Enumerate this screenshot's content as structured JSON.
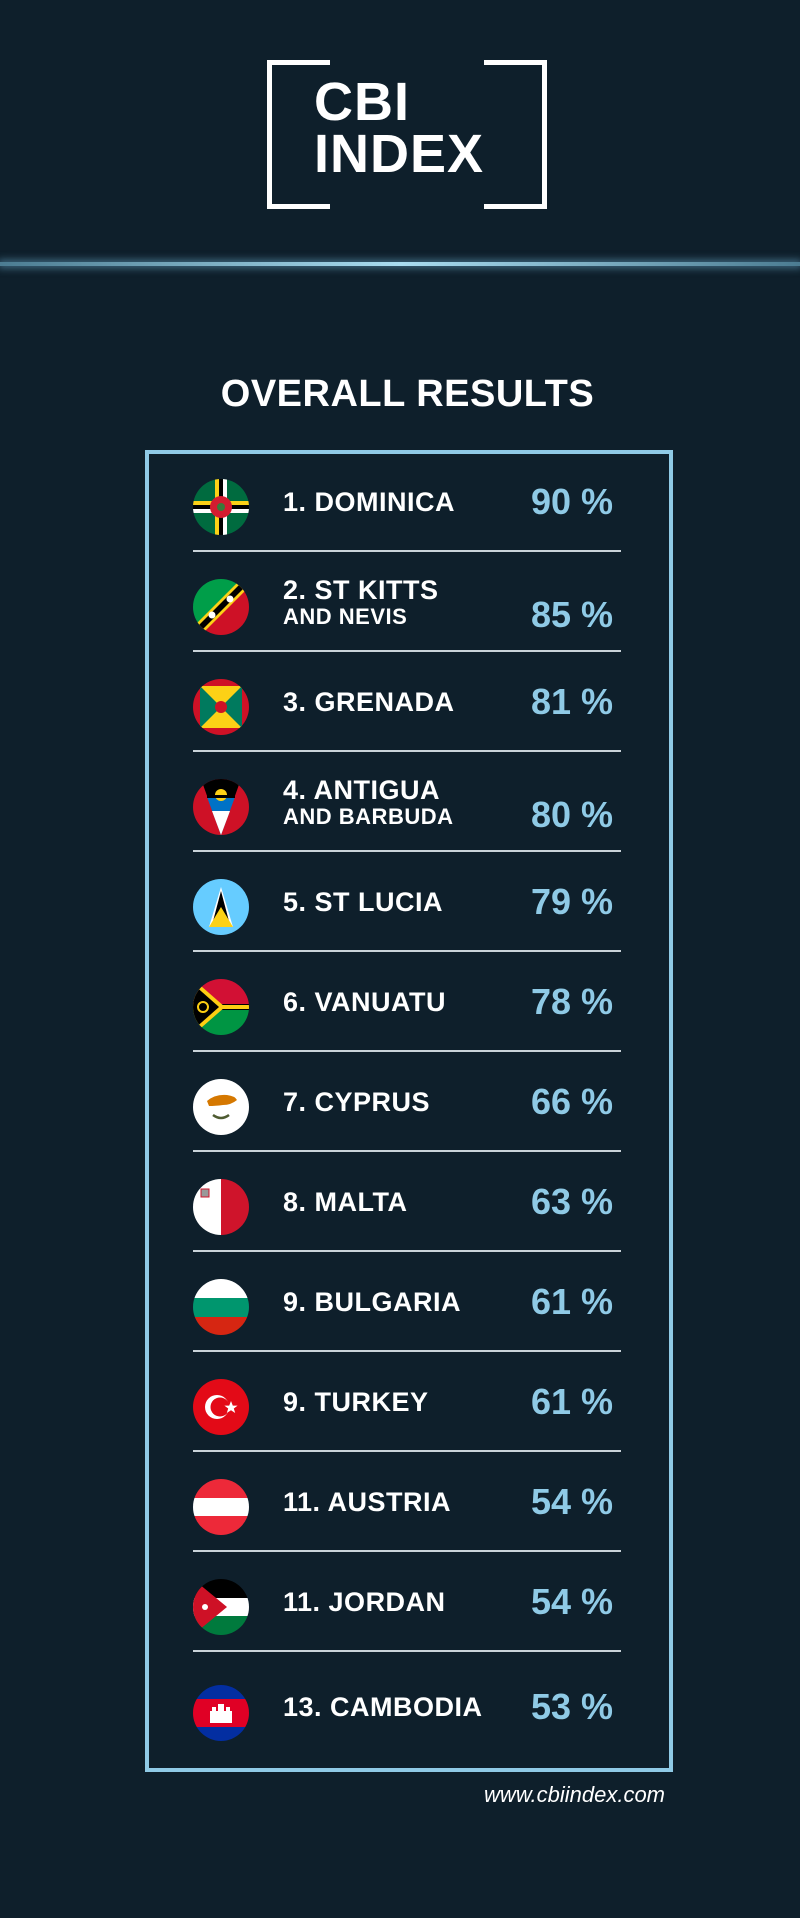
{
  "logo": {
    "line1": "CBI",
    "line2": "INDEX"
  },
  "heading": "OVERALL RESULTS",
  "website": "www.cbiindex.com",
  "colors": {
    "background": "#0e1f2b",
    "accent": "#8fcae6",
    "text": "#ffffff"
  },
  "rows": [
    {
      "name": "1. DOMINICA",
      "sub": "",
      "pct": "90 %",
      "flag": "dominica-flag-icon"
    },
    {
      "name": "2. ST KITTS",
      "sub": "AND NEVIS",
      "pct": "85 %",
      "flag": "st-kitts-nevis-flag-icon"
    },
    {
      "name": "3. GRENADA",
      "sub": "",
      "pct": "81 %",
      "flag": "grenada-flag-icon"
    },
    {
      "name": "4. ANTIGUA",
      "sub": "AND BARBUDA",
      "pct": "80 %",
      "flag": "antigua-barbuda-flag-icon"
    },
    {
      "name": "5. ST LUCIA",
      "sub": "",
      "pct": "79 %",
      "flag": "st-lucia-flag-icon"
    },
    {
      "name": "6. VANUATU",
      "sub": "",
      "pct": "78 %",
      "flag": "vanuatu-flag-icon"
    },
    {
      "name": "7. CYPRUS",
      "sub": "",
      "pct": "66 %",
      "flag": "cyprus-flag-icon"
    },
    {
      "name": "8. MALTA",
      "sub": "",
      "pct": "63 %",
      "flag": "malta-flag-icon"
    },
    {
      "name": "9. BULGARIA",
      "sub": "",
      "pct": "61 %",
      "flag": "bulgaria-flag-icon"
    },
    {
      "name": "9. TURKEY",
      "sub": "",
      "pct": "61 %",
      "flag": "turkey-flag-icon"
    },
    {
      "name": "11. AUSTRIA",
      "sub": "",
      "pct": "54 %",
      "flag": "austria-flag-icon"
    },
    {
      "name": "11. JORDAN",
      "sub": "",
      "pct": "54 %",
      "flag": "jordan-flag-icon"
    },
    {
      "name": "13. CAMBODIA",
      "sub": "",
      "pct": "53 %",
      "flag": "cambodia-flag-icon"
    }
  ]
}
